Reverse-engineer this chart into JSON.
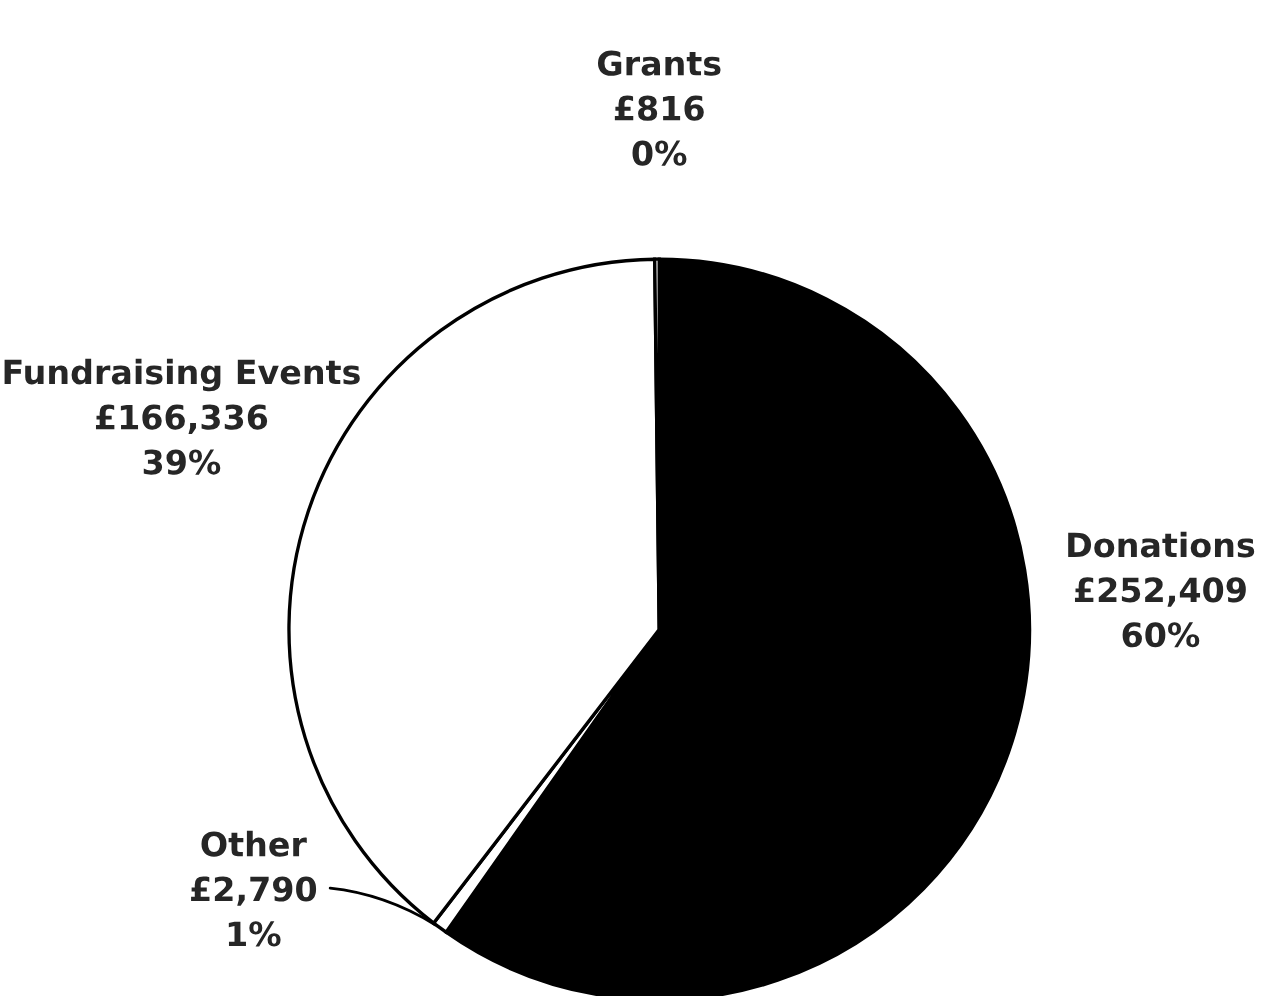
{
  "chart_data": {
    "type": "pie",
    "categories": [
      "Donations",
      "Other",
      "Fundraising Events",
      "Grants"
    ],
    "values": [
      252409,
      2790,
      166336,
      816
    ],
    "value_labels": [
      "£252,409\n60%",
      "£2,790\n1%",
      "£166,336\n39%",
      "£816\n0%"
    ],
    "colors": [
      "#000000",
      "#ffffff",
      "#ffffff",
      "#ffffff"
    ]
  }
}
